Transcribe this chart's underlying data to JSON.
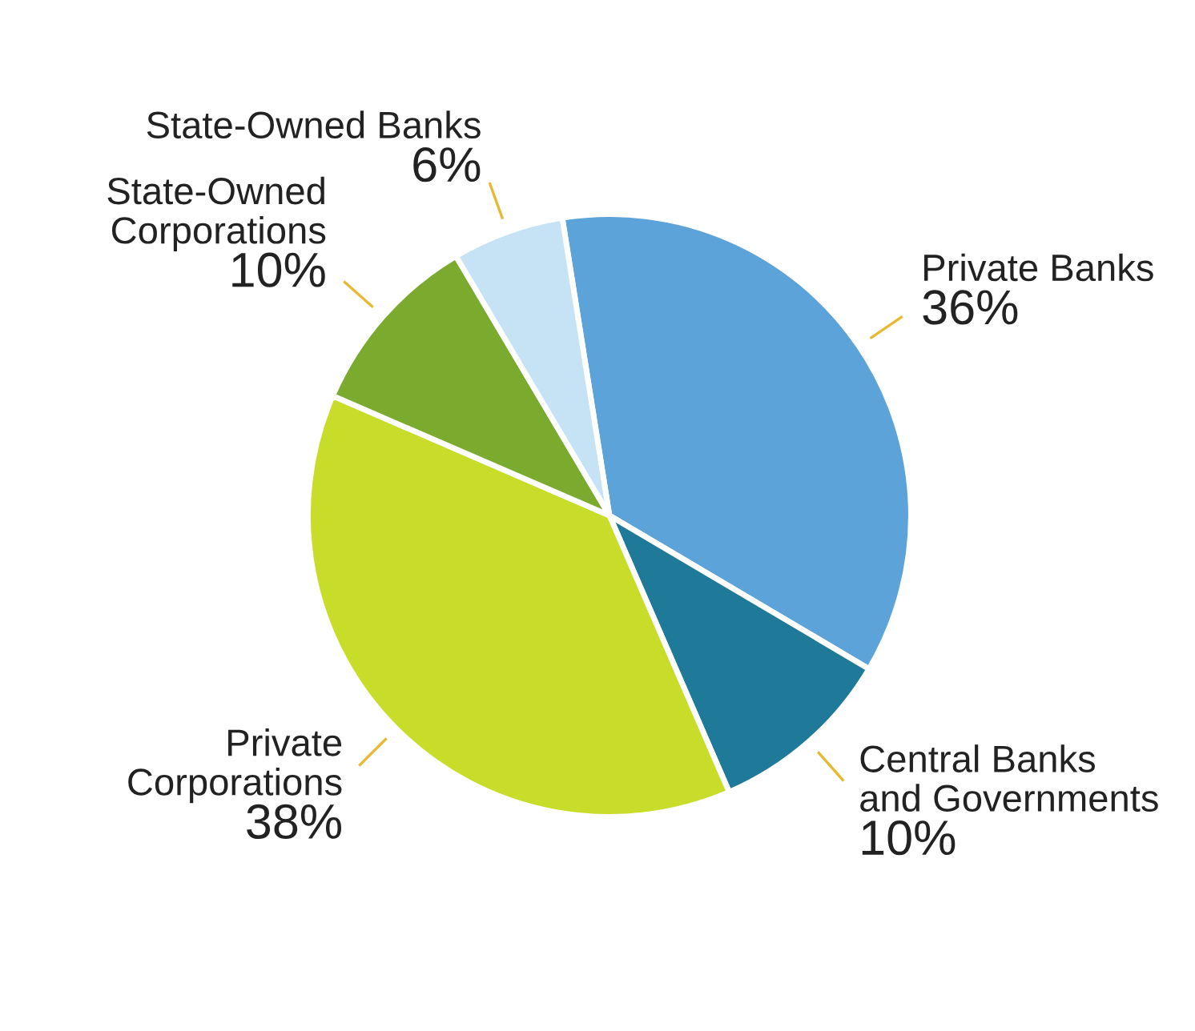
{
  "chart_data": {
    "type": "pie",
    "categories": [
      "Private Banks",
      "Central Banks\nand Governments",
      "Private\nCorporations",
      "State-Owned\nCorporations",
      "State-Owned Banks"
    ],
    "values": [
      36,
      10,
      38,
      10,
      6
    ],
    "value_labels": [
      "36%",
      "10%",
      "38%",
      "10%",
      "6%"
    ],
    "colors": [
      "#5ba3d9",
      "#1f7a99",
      "#c8dc2a",
      "#7aab2e",
      "#c5e3f5"
    ]
  }
}
